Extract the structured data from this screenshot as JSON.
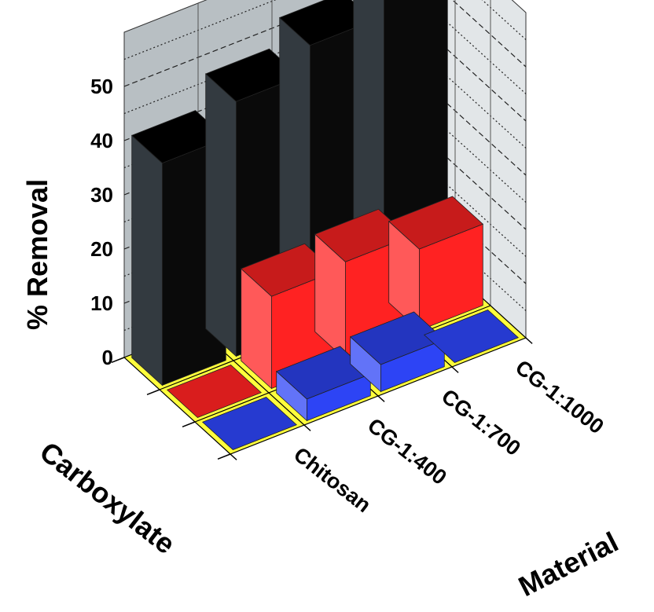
{
  "chart_data": {
    "type": "bar",
    "title": "",
    "zlabel": "% Removal",
    "xlabel": "Material",
    "ylabel": "Carboxylate",
    "zlim": [
      0,
      50
    ],
    "z_ticks": [
      "0",
      "10",
      "20",
      "30",
      "40",
      "50"
    ],
    "categories": [
      "Chitosan",
      "CG-1:400",
      "CG-1:700",
      "CG-1:1000"
    ],
    "series": [
      {
        "color": "#111111",
        "values": [
          41,
          47,
          52,
          57
        ]
      },
      {
        "color": "#ff2222",
        "values": [
          0,
          17,
          18,
          15
        ]
      },
      {
        "color": "#2d44f5",
        "values": [
          0,
          4,
          5,
          0
        ]
      }
    ],
    "grid": true,
    "floor_color": "#ffff3c"
  }
}
